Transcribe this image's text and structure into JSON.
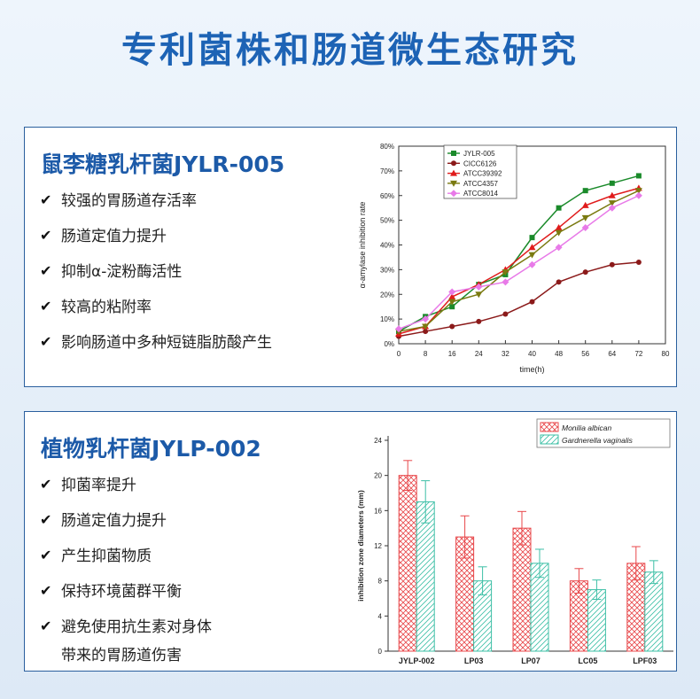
{
  "page": {
    "title": "专利菌株和肠道微生态研究"
  },
  "card1": {
    "title": "鼠李糖乳杆菌JYLR-005",
    "features": [
      "较强的胃肠道存活率",
      "肠道定值力提升",
      "抑制α-淀粉酶活性",
      "较高的粘附率",
      "影响肠道中多种短链脂肪酸产生"
    ]
  },
  "card2": {
    "title": "植物乳杆菌JYLP-002",
    "features": [
      "抑菌率提升",
      "肠道定值力提升",
      "产生抑菌物质",
      "保持环境菌群平衡",
      "避免使用抗生素对身体\n带来的胃肠道伤害"
    ]
  },
  "chart_data": [
    {
      "type": "line",
      "title": "",
      "xlabel": "time(h)",
      "ylabel": "α-amylase inhibition rate",
      "xlim": [
        0,
        80
      ],
      "ylim": [
        0,
        80
      ],
      "x_ticks": [
        0,
        8,
        16,
        24,
        32,
        40,
        48,
        56,
        64,
        72,
        80
      ],
      "y_ticks": [
        "0%",
        "10%",
        "20%",
        "30%",
        "40%",
        "50%",
        "60%",
        "70%",
        "80%"
      ],
      "legend_position": "top-left",
      "x": [
        0,
        8,
        16,
        24,
        32,
        40,
        48,
        56,
        64,
        72
      ],
      "series": [
        {
          "name": "JYLR-005",
          "color": "#1a8a2a",
          "marker": "square",
          "values": [
            5,
            11,
            15,
            24,
            28,
            43,
            55,
            62,
            65,
            68
          ]
        },
        {
          "name": "CICC6126",
          "color": "#8b1a1a",
          "marker": "circle",
          "values": [
            3,
            5,
            7,
            9,
            12,
            17,
            25,
            29,
            32,
            33
          ]
        },
        {
          "name": "ATCC39392",
          "color": "#e01b1b",
          "marker": "triangle-up",
          "values": [
            4,
            7,
            19,
            24,
            30,
            39,
            47,
            56,
            60,
            63
          ]
        },
        {
          "name": "ATCC4357",
          "color": "#7a7a10",
          "marker": "triangle-down",
          "values": [
            5,
            7,
            17,
            20,
            29,
            36,
            45,
            51,
            57,
            62
          ]
        },
        {
          "name": "ATCC8014",
          "color": "#e87ae8",
          "marker": "diamond",
          "values": [
            6,
            10,
            21,
            23,
            25,
            32,
            39,
            47,
            55,
            60
          ]
        }
      ]
    },
    {
      "type": "bar",
      "title": "",
      "xlabel": "",
      "ylabel": "inhibition zone diameters (mm)",
      "ylim": [
        0,
        24
      ],
      "y_ticks": [
        0,
        4,
        8,
        12,
        16,
        20,
        24
      ],
      "legend_position": "top-right",
      "categories": [
        "JYLP-002",
        "LP03",
        "LP07",
        "LC05",
        "LPF03"
      ],
      "series": [
        {
          "name": "Monilia albican",
          "color": "#e8474a",
          "pattern": "cross-hatch",
          "values": [
            20,
            13,
            14,
            8,
            10
          ],
          "errors": [
            1.7,
            2.4,
            1.9,
            1.4,
            1.9
          ]
        },
        {
          "name": "Gardnerella vaginalis",
          "color": "#3cbfa6",
          "pattern": "diagonal",
          "values": [
            17,
            8,
            10,
            7,
            9
          ],
          "errors": [
            2.4,
            1.6,
            1.6,
            1.1,
            1.3
          ]
        }
      ]
    }
  ]
}
